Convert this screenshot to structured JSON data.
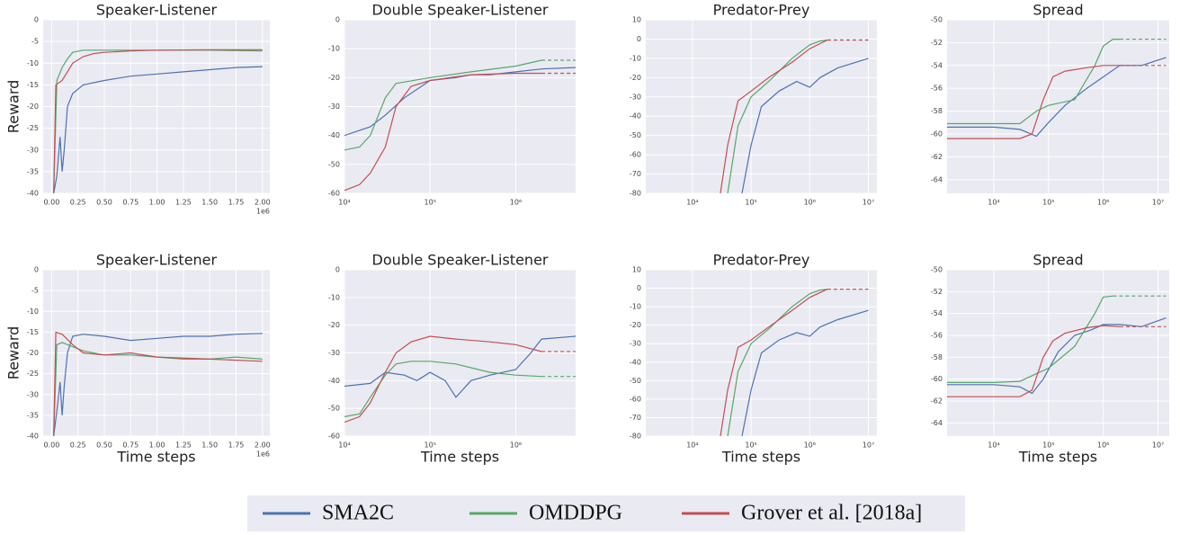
{
  "chart_data": [
    {
      "type": "line",
      "title": "Speaker-Listener",
      "ylabel": "Reward",
      "xscale": "linear",
      "xoffset_label": "1e6",
      "xlim": [
        -80000,
        2070000
      ],
      "ylim": [
        -40,
        0
      ],
      "xticks": [
        {
          "value": 0,
          "label": "0.00"
        },
        {
          "value": 250000,
          "label": "0.25"
        },
        {
          "value": 500000,
          "label": "0.50"
        },
        {
          "value": 750000,
          "label": "0.75"
        },
        {
          "value": 1000000,
          "label": "1.00"
        },
        {
          "value": 1250000,
          "label": "1.25"
        },
        {
          "value": 1500000,
          "label": "1.50"
        },
        {
          "value": 1750000,
          "label": "1.75"
        },
        {
          "value": 2000000,
          "label": "2.00"
        }
      ],
      "yticks": [
        -40,
        -35,
        -30,
        -25,
        -20,
        -15,
        -10,
        -5,
        0
      ],
      "series": [
        {
          "name": "SMA2C",
          "color": "#4c72b0",
          "x": [
            20000,
            50000,
            80000,
            100000,
            120000,
            150000,
            200000,
            300000,
            500000,
            750000,
            1000000,
            1250000,
            1500000,
            1750000,
            2000000
          ],
          "values": [
            -40,
            -36,
            -27,
            -35,
            -30,
            -20,
            -17,
            -15,
            -14,
            -13,
            -12.5,
            -12,
            -11.5,
            -11,
            -10.8
          ]
        },
        {
          "name": "OMDDPG",
          "color": "#55a868",
          "x": [
            20000,
            50000,
            100000,
            150000,
            200000,
            300000,
            500000,
            1000000,
            1500000,
            2000000
          ],
          "values": [
            -40,
            -14,
            -11,
            -9,
            -7.5,
            -7,
            -7,
            -7,
            -7,
            -7.2
          ]
        },
        {
          "name": "Grover et al. [2018a]",
          "color": "#c44e52",
          "x": [
            20000,
            40000,
            100000,
            150000,
            200000,
            300000,
            400000,
            500000,
            750000,
            1000000,
            1500000,
            2000000
          ],
          "values": [
            -40,
            -15,
            -14,
            -12,
            -10,
            -8.5,
            -7.8,
            -7.5,
            -7.2,
            -7,
            -6.9,
            -6.9
          ]
        }
      ]
    },
    {
      "type": "line",
      "title": "Double Speaker-Listener",
      "xscale": "log",
      "xlim": [
        10000,
        5000000
      ],
      "ylim": [
        -60,
        0
      ],
      "xticks": [
        {
          "value": 10000,
          "label": "10⁴"
        },
        {
          "value": 100000,
          "label": "10⁵"
        },
        {
          "value": 1000000,
          "label": "10⁶"
        }
      ],
      "yticks": [
        -60,
        -50,
        -40,
        -30,
        -20,
        -10,
        0
      ],
      "series": [
        {
          "name": "SMA2C",
          "color": "#4c72b0",
          "x": [
            10000,
            20000,
            30000,
            50000,
            100000,
            200000,
            300000,
            500000,
            1000000,
            2000000,
            5000000
          ],
          "values": [
            -40,
            -37,
            -33,
            -27,
            -21,
            -20,
            -19,
            -19,
            -18,
            -17,
            -16.5
          ]
        },
        {
          "name": "OMDDPG",
          "color": "#55a868",
          "x": [
            10000,
            15000,
            20000,
            30000,
            40000,
            100000,
            300000,
            1000000,
            2000000
          ],
          "values": [
            -45,
            -44,
            -40,
            -27,
            -22,
            -20,
            -18,
            -16,
            -14
          ],
          "dash_end": 5000000
        },
        {
          "name": "Grover et al. [2018a]",
          "color": "#c44e52",
          "x": [
            10000,
            15000,
            20000,
            30000,
            40000,
            60000,
            100000,
            300000,
            1000000,
            2000000
          ],
          "values": [
            -59,
            -57,
            -53,
            -44,
            -30,
            -23,
            -21,
            -19,
            -18.5,
            -18.5
          ],
          "dash_end": 5000000
        }
      ]
    },
    {
      "type": "line",
      "title": "Predator-Prey",
      "xscale": "log",
      "xlim": [
        1600,
        14000000
      ],
      "ylim": [
        -80,
        10
      ],
      "xticks": [
        {
          "value": 10000,
          "label": "10⁴"
        },
        {
          "value": 100000,
          "label": "10⁵"
        },
        {
          "value": 1000000,
          "label": "10⁶"
        },
        {
          "value": 10000000,
          "label": "10⁷"
        }
      ],
      "yticks": [
        -80,
        -70,
        -60,
        -50,
        -40,
        -30,
        -20,
        -10,
        0,
        10
      ],
      "series": [
        {
          "name": "SMA2C",
          "color": "#4c72b0",
          "x": [
            70000,
            100000,
            150000,
            300000,
            600000,
            1000000,
            1500000,
            3000000,
            10000000
          ],
          "values": [
            -80,
            -55,
            -35,
            -27,
            -22,
            -25,
            -20,
            -15,
            -10
          ]
        },
        {
          "name": "OMDDPG",
          "color": "#55a868",
          "x": [
            40000,
            60000,
            100000,
            200000,
            500000,
            1000000,
            1500000,
            2000000
          ],
          "values": [
            -80,
            -45,
            -30,
            -22,
            -10,
            -3,
            -1,
            -0.5
          ],
          "dash_end": 10000000
        },
        {
          "name": "Grover et al. [2018a]",
          "color": "#c44e52",
          "x": [
            30000,
            40000,
            60000,
            100000,
            200000,
            500000,
            1000000,
            2000000
          ],
          "values": [
            -80,
            -55,
            -32,
            -27,
            -20,
            -12,
            -5,
            -0.5
          ],
          "dash_end": 10000000
        }
      ]
    },
    {
      "type": "line",
      "title": "Spread",
      "xscale": "log",
      "xlim": [
        1400,
        16000000
      ],
      "ylim": [
        -65.2,
        -50
      ],
      "xticks": [
        {
          "value": 10000,
          "label": "10⁴"
        },
        {
          "value": 100000,
          "label": "10⁵"
        },
        {
          "value": 1000000,
          "label": "10⁶"
        },
        {
          "value": 10000000,
          "label": "10⁷"
        }
      ],
      "yticks": [
        -64,
        -62,
        -60,
        -58,
        -56,
        -54,
        -52,
        -50
      ],
      "series": [
        {
          "name": "SMA2C",
          "color": "#4c72b0",
          "x": [
            1400,
            10000,
            30000,
            60000,
            100000,
            200000,
            500000,
            1000000,
            2000000,
            5000000,
            14000000
          ],
          "values": [
            -59.4,
            -59.4,
            -59.6,
            -60.2,
            -59,
            -57.5,
            -56,
            -55,
            -54,
            -54,
            -53.3
          ]
        },
        {
          "name": "OMDDPG",
          "color": "#55a868",
          "x": [
            1400,
            10000,
            30000,
            60000,
            100000,
            300000,
            700000,
            1000000,
            1500000,
            2000000
          ],
          "values": [
            -59.1,
            -59.1,
            -59.1,
            -58,
            -57.5,
            -57,
            -54,
            -52.3,
            -51.7,
            -51.7
          ],
          "dash_end": 14000000
        },
        {
          "name": "Grover et al. [2018a]",
          "color": "#c44e52",
          "x": [
            1400,
            10000,
            30000,
            50000,
            80000,
            120000,
            200000,
            500000,
            1000000,
            2000000
          ],
          "values": [
            -60.4,
            -60.4,
            -60.4,
            -60,
            -57,
            -55,
            -54.5,
            -54.2,
            -54,
            -54
          ],
          "dash_end": 14000000
        }
      ]
    },
    {
      "type": "line",
      "title": "Speaker-Listener",
      "ylabel": "Reward",
      "xlabel": "Time steps",
      "xscale": "linear",
      "xoffset_label": "1e6",
      "xlim": [
        -80000,
        2070000
      ],
      "ylim": [
        -40,
        0
      ],
      "xticks": [
        {
          "value": 0,
          "label": "0.00"
        },
        {
          "value": 250000,
          "label": "0.25"
        },
        {
          "value": 500000,
          "label": "0.50"
        },
        {
          "value": 750000,
          "label": "0.75"
        },
        {
          "value": 1000000,
          "label": "1.00"
        },
        {
          "value": 1250000,
          "label": "1.25"
        },
        {
          "value": 1500000,
          "label": "1.50"
        },
        {
          "value": 1750000,
          "label": "1.75"
        },
        {
          "value": 2000000,
          "label": "2.00"
        }
      ],
      "yticks": [
        -40,
        -35,
        -30,
        -25,
        -20,
        -15,
        -10,
        -5,
        0
      ],
      "series": [
        {
          "name": "SMA2C",
          "color": "#4c72b0",
          "x": [
            20000,
            50000,
            80000,
            100000,
            120000,
            150000,
            200000,
            300000,
            500000,
            750000,
            1000000,
            1250000,
            1500000,
            1750000,
            2000000
          ],
          "values": [
            -40,
            -34,
            -27,
            -35,
            -28,
            -20,
            -16,
            -15.5,
            -16,
            -17,
            -16.5,
            -16,
            -16,
            -15.5,
            -15.3
          ]
        },
        {
          "name": "OMDDPG",
          "color": "#55a868",
          "x": [
            20000,
            50000,
            100000,
            200000,
            300000,
            500000,
            750000,
            1000000,
            1250000,
            1500000,
            1750000,
            2000000
          ],
          "values": [
            -40,
            -18,
            -17.5,
            -18.5,
            -19.5,
            -20.5,
            -20.5,
            -21,
            -21.5,
            -21.5,
            -21,
            -21.5
          ]
        },
        {
          "name": "Grover et al. [2018a]",
          "color": "#c44e52",
          "x": [
            20000,
            40000,
            100000,
            200000,
            300000,
            500000,
            750000,
            1000000,
            1500000,
            2000000
          ],
          "values": [
            -40,
            -15,
            -15.5,
            -18,
            -20,
            -20.5,
            -20,
            -21,
            -21.5,
            -22
          ]
        }
      ]
    },
    {
      "type": "line",
      "title": "Double Speaker-Listener",
      "xlabel": "Time steps",
      "xscale": "log",
      "xlim": [
        10000,
        5000000
      ],
      "ylim": [
        -60,
        0
      ],
      "xticks": [
        {
          "value": 10000,
          "label": "10⁴"
        },
        {
          "value": 100000,
          "label": "10⁵"
        },
        {
          "value": 1000000,
          "label": "10⁶"
        }
      ],
      "yticks": [
        -60,
        -50,
        -40,
        -30,
        -20,
        -10,
        0
      ],
      "series": [
        {
          "name": "SMA2C",
          "color": "#4c72b0",
          "x": [
            10000,
            20000,
            30000,
            50000,
            70000,
            100000,
            150000,
            200000,
            300000,
            500000,
            1000000,
            1500000,
            2000000,
            5000000
          ],
          "values": [
            -42,
            -41,
            -37,
            -38,
            -40,
            -37,
            -40,
            -46,
            -40,
            -38,
            -36,
            -30,
            -25,
            -24
          ]
        },
        {
          "name": "OMDDPG",
          "color": "#55a868",
          "x": [
            10000,
            15000,
            20000,
            30000,
            40000,
            60000,
            100000,
            200000,
            500000,
            1000000,
            2000000
          ],
          "values": [
            -53,
            -52,
            -46,
            -38,
            -34,
            -33,
            -33,
            -34,
            -37,
            -38,
            -38.5
          ],
          "dash_end": 5000000
        },
        {
          "name": "Grover et al. [2018a]",
          "color": "#c44e52",
          "x": [
            10000,
            15000,
            20000,
            30000,
            40000,
            60000,
            100000,
            200000,
            500000,
            1000000,
            2000000
          ],
          "values": [
            -55,
            -53,
            -48,
            -37,
            -30,
            -26,
            -24,
            -25,
            -26,
            -27,
            -29.5
          ],
          "dash_end": 5000000
        }
      ]
    },
    {
      "type": "line",
      "title": "Predator-Prey",
      "xlabel": "Time steps",
      "xscale": "log",
      "xlim": [
        1600,
        14000000
      ],
      "ylim": [
        -80,
        10
      ],
      "xticks": [
        {
          "value": 10000,
          "label": "10⁴"
        },
        {
          "value": 100000,
          "label": "10⁵"
        },
        {
          "value": 1000000,
          "label": "10⁶"
        },
        {
          "value": 10000000,
          "label": "10⁷"
        }
      ],
      "yticks": [
        -80,
        -70,
        -60,
        -50,
        -40,
        -30,
        -20,
        -10,
        0,
        10
      ],
      "series": [
        {
          "name": "SMA2C",
          "color": "#4c72b0",
          "x": [
            70000,
            100000,
            150000,
            300000,
            600000,
            1000000,
            1500000,
            3000000,
            10000000
          ],
          "values": [
            -80,
            -55,
            -35,
            -28,
            -24,
            -26,
            -21,
            -17,
            -12
          ]
        },
        {
          "name": "OMDDPG",
          "color": "#55a868",
          "x": [
            40000,
            60000,
            100000,
            200000,
            500000,
            1000000,
            1500000,
            2000000
          ],
          "values": [
            -80,
            -45,
            -30,
            -22,
            -10,
            -3,
            -1,
            -0.5
          ],
          "dash_end": 10000000
        },
        {
          "name": "Grover et al. [2018a]",
          "color": "#c44e52",
          "x": [
            30000,
            40000,
            60000,
            100000,
            200000,
            500000,
            1000000,
            2000000
          ],
          "values": [
            -80,
            -55,
            -32,
            -28,
            -21,
            -12,
            -5,
            -0.5
          ],
          "dash_end": 10000000
        }
      ]
    },
    {
      "type": "line",
      "title": "Spread",
      "xlabel": "Time steps",
      "xscale": "log",
      "xlim": [
        1400,
        16000000
      ],
      "ylim": [
        -65.2,
        -50
      ],
      "xticks": [
        {
          "value": 10000,
          "label": "10⁴"
        },
        {
          "value": 100000,
          "label": "10⁵"
        },
        {
          "value": 1000000,
          "label": "10⁶"
        },
        {
          "value": 10000000,
          "label": "10⁷"
        }
      ],
      "yticks": [
        -64,
        -62,
        -60,
        -58,
        -56,
        -54,
        -52,
        -50
      ],
      "series": [
        {
          "name": "SMA2C",
          "color": "#4c72b0",
          "x": [
            1400,
            10000,
            30000,
            50000,
            80000,
            150000,
            300000,
            600000,
            1000000,
            2000000,
            5000000,
            14000000
          ],
          "values": [
            -60.5,
            -60.5,
            -60.7,
            -61.3,
            -60,
            -57.5,
            -56,
            -55.5,
            -55,
            -55,
            -55.2,
            -54.4
          ]
        },
        {
          "name": "OMDDPG",
          "color": "#55a868",
          "x": [
            1400,
            10000,
            30000,
            60000,
            100000,
            300000,
            700000,
            1000000,
            1500000
          ],
          "values": [
            -60.3,
            -60.3,
            -60.2,
            -59.5,
            -59,
            -57,
            -54,
            -52.5,
            -52.4
          ],
          "dash_end": 14000000
        },
        {
          "name": "Grover et al. [2018a]",
          "color": "#c44e52",
          "x": [
            1400,
            10000,
            30000,
            50000,
            80000,
            120000,
            200000,
            500000,
            1000000,
            2000000
          ],
          "values": [
            -61.6,
            -61.6,
            -61.6,
            -61,
            -58,
            -56.5,
            -55.8,
            -55.3,
            -55.1,
            -55.2
          ],
          "dash_end": 14000000
        }
      ]
    }
  ]
}
